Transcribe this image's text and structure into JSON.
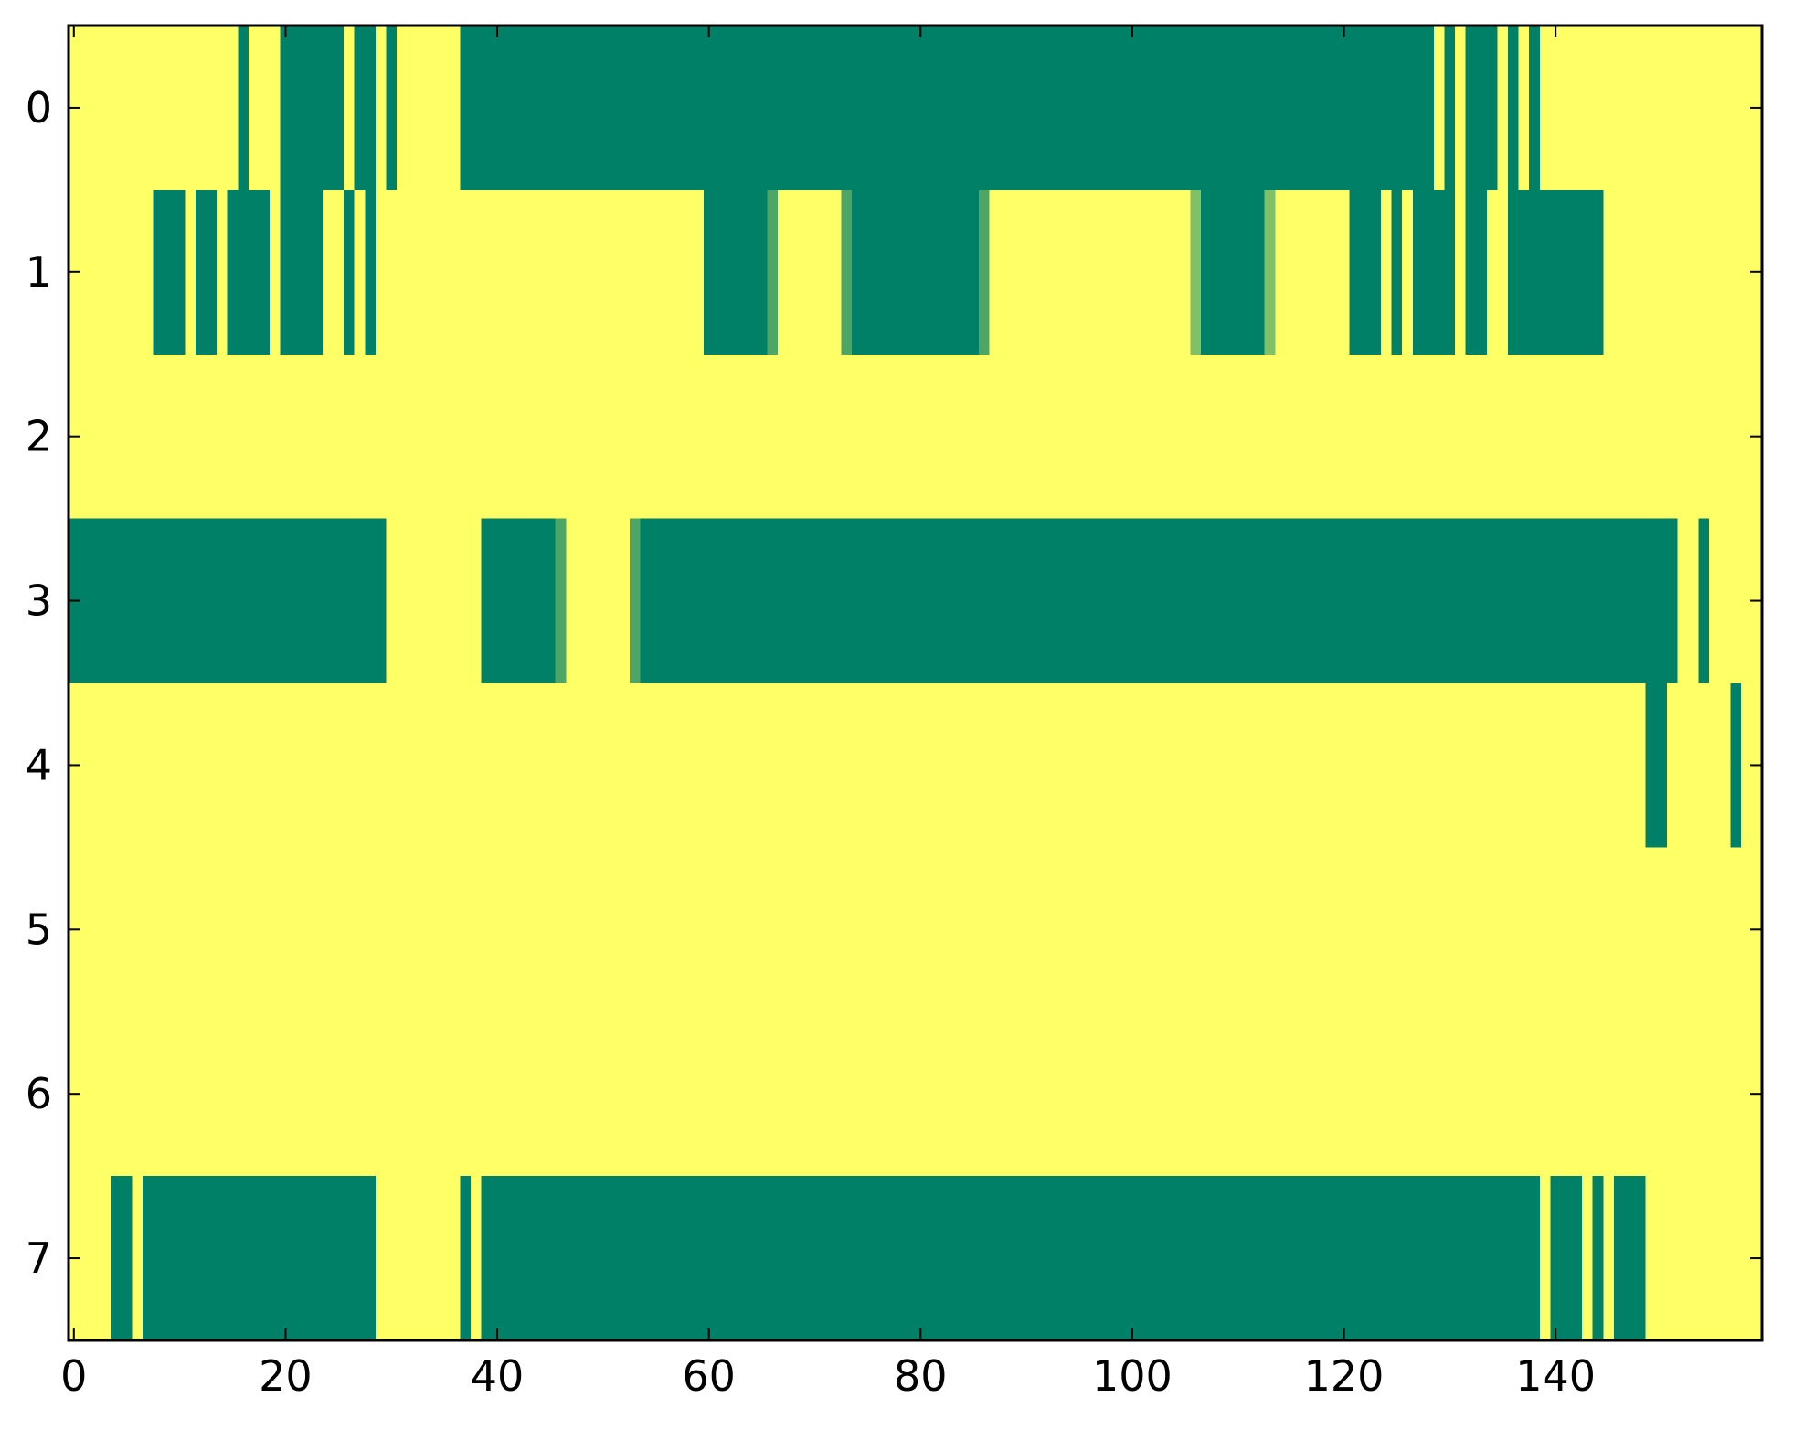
{
  "chart_data": {
    "type": "heatmap",
    "colormap": [
      "#008066",
      "#ffff66"
    ],
    "xlim": [
      -0.5,
      159.5
    ],
    "xticks": [
      0,
      20,
      40,
      60,
      80,
      100,
      120,
      140
    ],
    "ylim": [
      7.5,
      -0.5
    ],
    "yticks": [
      0,
      1,
      2,
      3,
      4,
      5,
      6,
      7
    ],
    "values": [
      [
        1,
        1,
        1,
        1,
        1,
        1,
        1,
        1,
        1,
        1,
        1,
        1,
        1,
        1,
        1,
        1,
        0,
        1,
        1,
        1,
        0,
        0,
        0,
        0,
        0,
        0,
        1,
        0,
        0,
        1,
        0,
        1,
        1,
        1,
        1,
        1,
        1,
        0,
        0,
        0,
        0,
        0,
        0,
        0,
        0,
        0,
        0,
        0,
        0,
        0,
        0,
        0,
        0,
        0,
        0,
        0,
        0,
        0,
        0,
        0,
        0,
        0,
        0,
        0,
        0,
        0,
        0,
        0,
        0,
        0,
        0,
        0,
        0,
        0,
        0,
        0,
        0,
        0,
        0,
        0,
        0,
        0,
        0,
        0,
        0,
        0,
        0,
        0,
        0,
        0,
        0,
        0,
        0,
        0,
        0,
        0,
        0,
        0,
        0,
        0,
        0,
        0,
        0,
        0,
        0,
        0,
        0,
        0,
        0,
        0,
        0,
        0,
        0,
        0,
        0,
        0,
        0,
        0,
        0,
        0,
        0,
        0,
        0,
        0,
        0,
        0,
        0,
        0,
        0,
        1,
        0,
        1,
        0,
        0,
        0,
        1,
        0,
        1,
        0,
        1,
        1,
        1,
        1,
        1,
        1,
        1,
        1,
        1,
        1,
        1,
        1,
        1,
        1,
        1,
        1,
        1,
        1,
        1,
        1,
        1
      ],
      [
        1,
        1,
        1,
        1,
        1,
        1,
        1,
        1,
        0,
        0,
        0,
        1,
        0,
        0,
        1,
        0,
        0,
        0,
        0,
        1,
        0,
        0,
        0,
        0,
        1,
        1,
        0,
        1,
        0,
        1,
        1,
        1,
        1,
        1,
        1,
        1,
        1,
        1,
        1,
        1,
        1,
        1,
        1,
        1,
        1,
        1,
        1,
        1,
        1,
        1,
        1,
        1,
        1,
        1,
        1,
        1,
        1,
        1,
        1,
        1,
        0,
        0,
        0,
        0,
        0,
        0,
        0.3,
        1,
        1,
        1,
        1,
        1,
        1,
        0.3,
        0,
        0,
        0,
        0,
        0,
        0,
        0,
        0,
        0,
        0,
        0,
        0,
        0.3,
        1,
        1,
        1,
        1,
        1,
        1,
        1,
        1,
        1,
        1,
        1,
        1,
        1,
        1,
        1,
        1,
        1,
        1,
        1,
        0.5,
        0,
        0,
        0,
        0,
        0,
        0,
        0.5,
        1,
        1,
        1,
        1,
        1,
        1,
        1,
        0,
        0,
        0,
        1,
        0,
        1,
        0,
        0,
        0,
        0,
        1,
        0,
        0,
        1,
        1,
        0,
        0,
        0,
        0,
        0,
        0,
        0,
        0,
        0,
        1,
        1,
        1,
        1,
        1,
        1,
        1,
        1,
        1,
        1,
        1,
        1,
        1,
        1,
        1
      ],
      [
        1,
        1,
        1,
        1,
        1,
        1,
        1,
        1,
        1,
        1,
        1,
        1,
        1,
        1,
        1,
        1,
        1,
        1,
        1,
        1,
        1,
        1,
        1,
        1,
        1,
        1,
        1,
        1,
        1,
        1,
        1,
        1,
        1,
        1,
        1,
        1,
        1,
        1,
        1,
        1,
        1,
        1,
        1,
        1,
        1,
        1,
        1,
        1,
        1,
        1,
        1,
        1,
        1,
        1,
        1,
        1,
        1,
        1,
        1,
        1,
        1,
        1,
        1,
        1,
        1,
        1,
        1,
        1,
        1,
        1,
        1,
        1,
        1,
        1,
        1,
        1,
        1,
        1,
        1,
        1,
        1,
        1,
        1,
        1,
        1,
        1,
        1,
        1,
        1,
        1,
        1,
        1,
        1,
        1,
        1,
        1,
        1,
        1,
        1,
        1,
        1,
        1,
        1,
        1,
        1,
        1,
        1,
        1,
        1,
        1,
        1,
        1,
        1,
        1,
        1,
        1,
        1,
        1,
        1,
        1,
        1,
        1,
        1,
        1,
        1,
        1,
        1,
        1,
        1,
        1,
        1,
        1,
        1,
        1,
        1,
        1,
        1,
        1,
        1,
        1,
        1,
        1,
        1,
        1,
        1,
        1,
        1,
        1,
        1,
        1,
        1,
        1,
        1,
        1,
        1,
        1,
        1,
        1,
        1,
        1
      ],
      [
        0,
        0,
        0,
        0,
        0,
        0,
        0,
        0,
        0,
        0,
        0,
        0,
        0,
        0,
        0,
        0,
        0,
        0,
        0,
        0,
        0,
        0,
        0,
        0,
        0,
        0,
        0,
        0,
        0,
        0,
        1,
        1,
        1,
        1,
        1,
        1,
        1,
        1,
        1,
        0,
        0,
        0,
        0,
        0,
        0,
        0,
        0.3,
        1,
        1,
        1,
        1,
        1,
        1,
        0.3,
        0,
        0,
        0,
        0,
        0,
        0,
        0,
        0,
        0,
        0,
        0,
        0,
        0,
        0,
        0,
        0,
        0,
        0,
        0,
        0,
        0,
        0,
        0,
        0,
        0,
        0,
        0,
        0,
        0,
        0,
        0,
        0,
        0,
        0,
        0,
        0,
        0,
        0,
        0,
        0,
        0,
        0,
        0,
        0,
        0,
        0,
        0,
        0,
        0,
        0,
        0,
        0,
        0,
        0,
        0,
        0,
        0,
        0,
        0,
        0,
        0,
        0,
        0,
        0,
        0,
        0,
        0,
        0,
        0,
        0,
        0,
        0,
        0,
        0,
        0,
        0,
        0,
        0,
        0,
        0,
        0,
        0,
        0,
        0,
        0,
        0,
        0,
        0,
        0,
        0,
        0,
        0,
        0,
        0,
        0,
        0,
        0,
        0,
        1,
        1,
        0,
        1,
        1,
        1,
        1,
        1
      ],
      [
        1,
        1,
        1,
        1,
        1,
        1,
        1,
        1,
        1,
        1,
        1,
        1,
        1,
        1,
        1,
        1,
        1,
        1,
        1,
        1,
        1,
        1,
        1,
        1,
        1,
        1,
        1,
        1,
        1,
        1,
        1,
        1,
        1,
        1,
        1,
        1,
        1,
        1,
        1,
        1,
        1,
        1,
        1,
        1,
        1,
        1,
        1,
        1,
        1,
        1,
        1,
        1,
        1,
        1,
        1,
        1,
        1,
        1,
        1,
        1,
        1,
        1,
        1,
        1,
        1,
        1,
        1,
        1,
        1,
        1,
        1,
        1,
        1,
        1,
        1,
        1,
        1,
        1,
        1,
        1,
        1,
        1,
        1,
        1,
        1,
        1,
        1,
        1,
        1,
        1,
        1,
        1,
        1,
        1,
        1,
        1,
        1,
        1,
        1,
        1,
        1,
        1,
        1,
        1,
        1,
        1,
        1,
        1,
        1,
        1,
        1,
        1,
        1,
        1,
        1,
        1,
        1,
        1,
        1,
        1,
        1,
        1,
        1,
        1,
        1,
        1,
        1,
        1,
        1,
        1,
        1,
        1,
        1,
        1,
        1,
        1,
        1,
        1,
        1,
        1,
        1,
        1,
        1,
        1,
        1,
        1,
        1,
        1,
        1,
        0,
        0,
        1,
        1,
        1,
        1,
        1,
        1,
        0,
        1,
        1
      ],
      [
        1,
        1,
        1,
        1,
        1,
        1,
        1,
        1,
        1,
        1,
        1,
        1,
        1,
        1,
        1,
        1,
        1,
        1,
        1,
        1,
        1,
        1,
        1,
        1,
        1,
        1,
        1,
        1,
        1,
        1,
        1,
        1,
        1,
        1,
        1,
        1,
        1,
        1,
        1,
        1,
        1,
        1,
        1,
        1,
        1,
        1,
        1,
        1,
        1,
        1,
        1,
        1,
        1,
        1,
        1,
        1,
        1,
        1,
        1,
        1,
        1,
        1,
        1,
        1,
        1,
        1,
        1,
        1,
        1,
        1,
        1,
        1,
        1,
        1,
        1,
        1,
        1,
        1,
        1,
        1,
        1,
        1,
        1,
        1,
        1,
        1,
        1,
        1,
        1,
        1,
        1,
        1,
        1,
        1,
        1,
        1,
        1,
        1,
        1,
        1,
        1,
        1,
        1,
        1,
        1,
        1,
        1,
        1,
        1,
        1,
        1,
        1,
        1,
        1,
        1,
        1,
        1,
        1,
        1,
        1,
        1,
        1,
        1,
        1,
        1,
        1,
        1,
        1,
        1,
        1,
        1,
        1,
        1,
        1,
        1,
        1,
        1,
        1,
        1,
        1,
        1,
        1,
        1,
        1,
        1,
        1,
        1,
        1,
        1,
        1,
        1,
        1,
        1,
        1,
        1,
        1,
        1,
        1,
        1,
        1
      ],
      [
        1,
        1,
        1,
        1,
        1,
        1,
        1,
        1,
        1,
        1,
        1,
        1,
        1,
        1,
        1,
        1,
        1,
        1,
        1,
        1,
        1,
        1,
        1,
        1,
        1,
        1,
        1,
        1,
        1,
        1,
        1,
        1,
        1,
        1,
        1,
        1,
        1,
        1,
        1,
        1,
        1,
        1,
        1,
        1,
        1,
        1,
        1,
        1,
        1,
        1,
        1,
        1,
        1,
        1,
        1,
        1,
        1,
        1,
        1,
        1,
        1,
        1,
        1,
        1,
        1,
        1,
        1,
        1,
        1,
        1,
        1,
        1,
        1,
        1,
        1,
        1,
        1,
        1,
        1,
        1,
        1,
        1,
        1,
        1,
        1,
        1,
        1,
        1,
        1,
        1,
        1,
        1,
        1,
        1,
        1,
        1,
        1,
        1,
        1,
        1,
        1,
        1,
        1,
        1,
        1,
        1,
        1,
        1,
        1,
        1,
        1,
        1,
        1,
        1,
        1,
        1,
        1,
        1,
        1,
        1,
        1,
        1,
        1,
        1,
        1,
        1,
        1,
        1,
        1,
        1,
        1,
        1,
        1,
        1,
        1,
        1,
        1,
        1,
        1,
        1,
        1,
        1,
        1,
        1,
        1,
        1,
        1,
        1,
        1,
        1,
        1,
        1,
        1,
        1,
        1,
        1,
        1,
        1,
        1,
        1
      ],
      [
        1,
        1,
        1,
        1,
        0,
        0,
        1,
        0,
        0,
        0,
        0,
        0,
        0,
        0,
        0,
        0,
        0,
        0,
        0,
        0,
        0,
        0,
        0,
        0,
        0,
        0,
        0,
        0,
        0,
        1,
        1,
        1,
        1,
        1,
        1,
        1,
        1,
        0,
        1,
        0,
        0,
        0,
        0,
        0,
        0,
        0,
        0,
        0,
        0,
        0,
        0,
        0,
        0,
        0,
        0,
        0,
        0,
        0,
        0,
        0,
        0,
        0,
        0,
        0,
        0,
        0,
        0,
        0,
        0,
        0,
        0,
        0,
        0,
        0,
        0,
        0,
        0,
        0,
        0,
        0,
        0,
        0,
        0,
        0,
        0,
        0,
        0,
        0,
        0,
        0,
        0,
        0,
        0,
        0,
        0,
        0,
        0,
        0,
        0,
        0,
        0,
        0,
        0,
        0,
        0,
        0,
        0,
        0,
        0,
        0,
        0,
        0,
        0,
        0,
        0,
        0,
        0,
        0,
        0,
        0,
        0,
        0,
        0,
        0,
        0,
        0,
        0,
        0,
        0,
        0,
        0,
        0,
        0,
        0,
        0,
        0,
        0,
        0,
        0,
        1,
        0,
        0,
        0,
        1,
        0,
        1,
        0,
        0,
        0,
        1,
        1,
        1,
        1,
        1,
        1,
        1,
        1,
        1,
        1,
        1
      ]
    ]
  }
}
